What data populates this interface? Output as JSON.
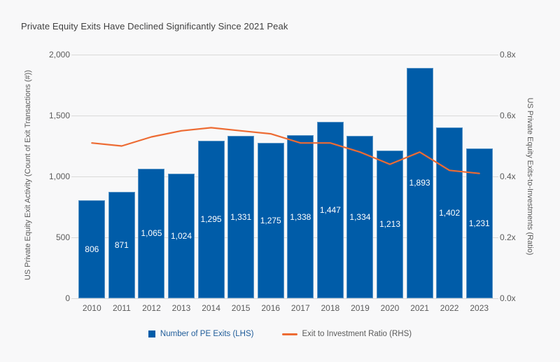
{
  "page": {
    "background": "#F8F8F9"
  },
  "chart_data": {
    "type": "bar",
    "title": "Private Equity Exits Have Declined Significantly Since 2021 Peak",
    "categories": [
      "2010",
      "2011",
      "2012",
      "2013",
      "2014",
      "2015",
      "2016",
      "2017",
      "2018",
      "2019",
      "2020",
      "2021",
      "2022",
      "2023"
    ],
    "series": [
      {
        "name": "Number of PE Exits (LHS)",
        "type": "bar",
        "axis": "left",
        "color": "#005CA8",
        "values": [
          806,
          871,
          1065,
          1024,
          1295,
          1331,
          1275,
          1338,
          1447,
          1334,
          1213,
          1893,
          1402,
          1231
        ]
      },
      {
        "name": "Exit to Investment Ratio (RHS)",
        "type": "line",
        "axis": "right",
        "color": "#ED6B33",
        "values": [
          0.51,
          0.5,
          0.53,
          0.55,
          0.56,
          0.55,
          0.54,
          0.51,
          0.51,
          0.48,
          0.44,
          0.48,
          0.42,
          0.41
        ]
      }
    ],
    "left_axis": {
      "label": "US Private Equity Exit Activity (Count of Exit Transactions (#))",
      "min": 0,
      "max": 2000,
      "ticks": [
        "2,000",
        "1,500",
        "1,000",
        "500",
        "0"
      ]
    },
    "right_axis": {
      "label": "US Private Equity Exits-to-Investments (Ratio)",
      "min": 0,
      "max": 0.8,
      "ticks": [
        "0.8x",
        "0.6x",
        "0.4x",
        "0.2x",
        "0.0x"
      ]
    },
    "grid": true,
    "legend_position": "bottom",
    "legend": [
      {
        "label": "Number of PE Exits (LHS)"
      },
      {
        "label": "Exit to Investment Ratio (RHS)"
      }
    ],
    "colors": {
      "background": "#F8F8F9",
      "gridline": "#D9D9D9",
      "title_text": "#3F3F3F",
      "axis_text": "#5A5A5A",
      "bar_fill": "#005CA8",
      "bar_value_text": "#FFFFFF",
      "line_stroke": "#ED6B33"
    }
  }
}
